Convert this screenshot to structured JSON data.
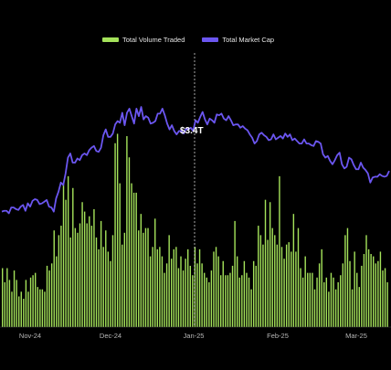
{
  "chart_data": {
    "type": "bar+line",
    "legend": [
      {
        "label": "Total Volume Traded",
        "color": "#a4e25a",
        "kind": "bar"
      },
      {
        "label": "Total Market Cap",
        "color": "#6b56f0",
        "kind": "line"
      }
    ],
    "x_ticks": [
      "Nov-24",
      "Dec-24",
      "Jan-25",
      "Feb-25",
      "Mar-25"
    ],
    "crosshair_label": "$3.4T",
    "axis_hidden": true,
    "series": [
      {
        "name": "Total Volume Traded",
        "type": "bar",
        "color": "#a4e25a",
        "scale_max": 100,
        "values": [
          25,
          19,
          25,
          20,
          15,
          24,
          20,
          13,
          15,
          12,
          20,
          15,
          21,
          22,
          23,
          17,
          16,
          16,
          15,
          26,
          24,
          27,
          41,
          30,
          39,
          43,
          61,
          54,
          64,
          38,
          59,
          42,
          40,
          44,
          53,
          49,
          44,
          47,
          43,
          50,
          38,
          33,
          45,
          34,
          41,
          32,
          28,
          39,
          78,
          82,
          61,
          35,
          40,
          81,
          72,
          61,
          57,
          57,
          41,
          48,
          40,
          42,
          42,
          30,
          34,
          46,
          33,
          34,
          30,
          23,
          27,
          39,
          29,
          33,
          34,
          25,
          30,
          24,
          29,
          33,
          26,
          22,
          34,
          27,
          33,
          27,
          23,
          21,
          19,
          24,
          32,
          34,
          30,
          22,
          28,
          22,
          22,
          23,
          26,
          45,
          30,
          21,
          22,
          28,
          23,
          21,
          16,
          28,
          26,
          43,
          39,
          35,
          54,
          37,
          53,
          42,
          39,
          35,
          64,
          34,
          29,
          35,
          36,
          32,
          48,
          32,
          42,
          25,
          21,
          30,
          23,
          23,
          23,
          16,
          21,
          27,
          33,
          19,
          21,
          15,
          23,
          21,
          16,
          19,
          22,
          27,
          39,
          42,
          28,
          16,
          32,
          23,
          17,
          26,
          31,
          39,
          33,
          31,
          30,
          27,
          28,
          32,
          24,
          25,
          19
        ]
      },
      {
        "name": "Total Market Cap",
        "type": "line",
        "color": "#6b56f0",
        "unit": "$T",
        "values": [
          2.29,
          2.3,
          2.3,
          2.27,
          2.34,
          2.34,
          2.32,
          2.31,
          2.35,
          2.37,
          2.3,
          2.39,
          2.35,
          2.42,
          2.44,
          2.43,
          2.38,
          2.39,
          2.41,
          2.43,
          2.35,
          2.34,
          2.29,
          2.45,
          2.53,
          2.64,
          2.61,
          2.75,
          2.94,
          2.99,
          2.88,
          2.88,
          2.93,
          2.91,
          2.97,
          2.99,
          2.97,
          3.03,
          3.06,
          3.08,
          3.02,
          3.01,
          3.06,
          3.21,
          3.28,
          3.19,
          3.19,
          3.23,
          3.34,
          3.38,
          3.36,
          3.48,
          3.33,
          3.48,
          3.53,
          3.44,
          3.35,
          3.53,
          3.44,
          3.55,
          3.4,
          3.44,
          3.42,
          3.35,
          3.36,
          3.38,
          3.47,
          3.47,
          3.53,
          3.45,
          3.35,
          3.28,
          3.33,
          3.26,
          3.22,
          3.26,
          3.26,
          3.23,
          3.29,
          3.28,
          3.3,
          3.26,
          3.39,
          3.36,
          3.43,
          3.49,
          3.4,
          3.34,
          3.41,
          3.39,
          3.36,
          3.46,
          3.45,
          3.47,
          3.41,
          3.39,
          3.44,
          3.39,
          3.33,
          3.34,
          3.34,
          3.3,
          3.32,
          3.29,
          3.27,
          3.22,
          3.18,
          3.11,
          3.14,
          3.22,
          3.24,
          3.21,
          3.19,
          3.15,
          3.16,
          3.22,
          3.16,
          3.18,
          3.2,
          3.17,
          3.23,
          3.19,
          3.22,
          3.15,
          3.17,
          3.14,
          3.11,
          3.11,
          3.16,
          3.11,
          3.11,
          3.09,
          3.08,
          3.14,
          3.13,
          3.11,
          2.98,
          2.94,
          2.96,
          2.9,
          2.86,
          2.91,
          2.97,
          3.0,
          2.86,
          2.81,
          2.83,
          2.94,
          2.92,
          2.85,
          2.8,
          2.8,
          2.88,
          2.82,
          2.79,
          2.75,
          2.64,
          2.7,
          2.71,
          2.71,
          2.74,
          2.72,
          2.71,
          2.72,
          2.78
        ]
      }
    ]
  }
}
